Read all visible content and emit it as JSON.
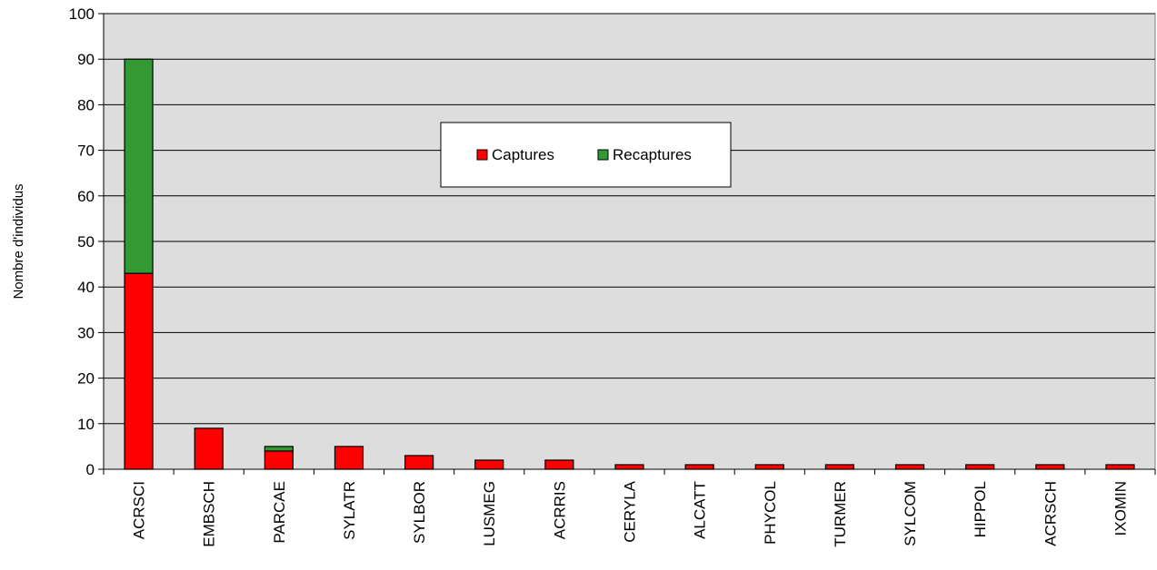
{
  "chart_data": {
    "type": "bar",
    "stacked": true,
    "categories": [
      "ACRSCI",
      "EMBSCH",
      "PARCAE",
      "SYLATR",
      "SYLBOR",
      "LUSMEG",
      "ACRRIS",
      "CERYLA",
      "ALCATT",
      "PHYCOL",
      "TURMER",
      "SYLCOM",
      "HIPPOL",
      "ACRSCH",
      "IXOMIN"
    ],
    "series": [
      {
        "name": "Captures",
        "color": "#ff0000",
        "values": [
          43,
          9,
          4,
          5,
          3,
          2,
          2,
          1,
          1,
          1,
          1,
          1,
          1,
          1,
          1
        ]
      },
      {
        "name": "Recaptures",
        "color": "#339933",
        "values": [
          47,
          0,
          1,
          0,
          0,
          0,
          0,
          0,
          0,
          0,
          0,
          0,
          0,
          0,
          0
        ]
      }
    ],
    "ylabel": "Nombre d'individus",
    "xlabel": "",
    "ylim": [
      0,
      100
    ],
    "yticks": [
      0,
      10,
      20,
      30,
      40,
      50,
      60,
      70,
      80,
      90,
      100
    ],
    "grid": true,
    "plot_background": "#dddddd",
    "legend": {
      "placement": "center",
      "entries": [
        "Captures",
        "Recaptures"
      ]
    }
  }
}
